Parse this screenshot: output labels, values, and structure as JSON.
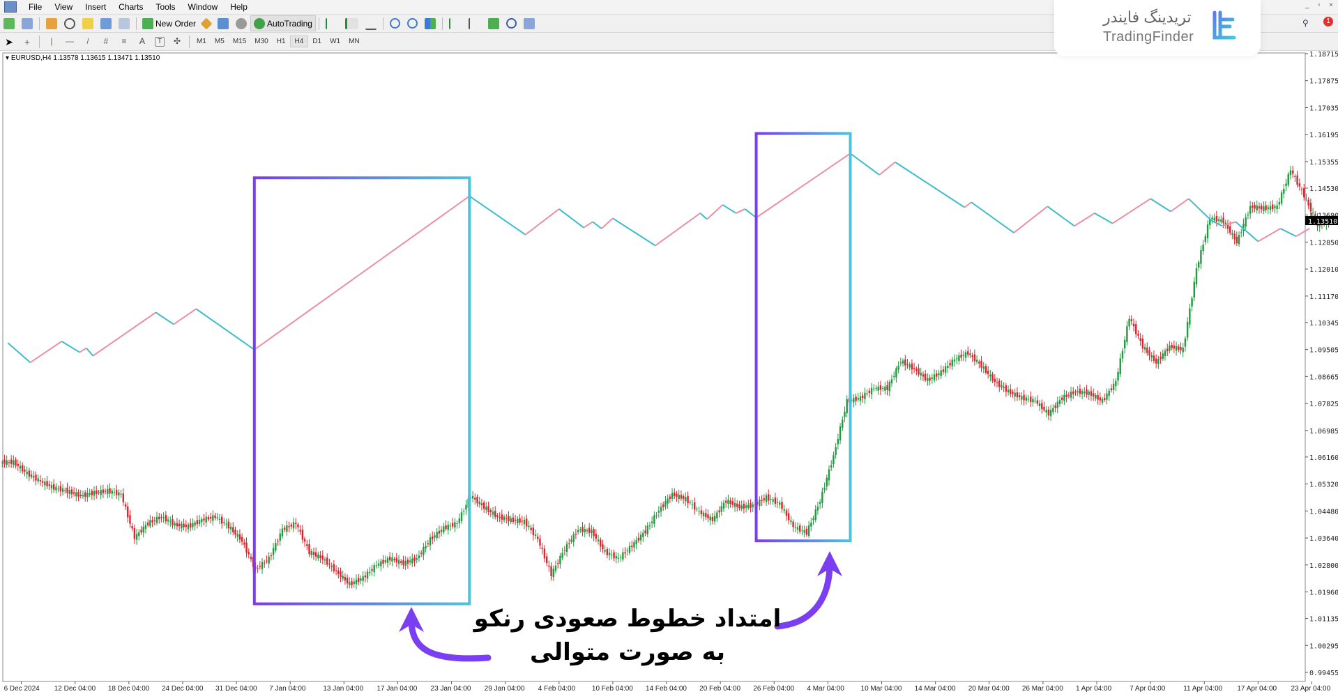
{
  "menu": [
    "File",
    "View",
    "Insert",
    "Charts",
    "Tools",
    "Window",
    "Help"
  ],
  "toolbar": {
    "new_order": "New Order",
    "auto_trading": "AutoTrading"
  },
  "timeframes": [
    "M1",
    "M5",
    "M15",
    "M30",
    "H1",
    "H4",
    "D1",
    "W1",
    "MN"
  ],
  "active_timeframe": "H4",
  "chart_header": "EURUSD,H4  1.13578 1.13615 1.13471 1.13510",
  "logo": {
    "fa": "تریدینگ فایندر",
    "en": "TradingFinder"
  },
  "annotation": {
    "line1": "امتداد خطوط صعودی رنکو",
    "line2": "به صورت متوالی"
  },
  "colors": {
    "bull": "#1f9a3c",
    "bear": "#e0202a",
    "renko_up": "#ec8fa3",
    "renko_down": "#3bbccc",
    "box_start": "#7a3cf0",
    "box_end": "#4cc3dd",
    "arrow": "#7b3ff2"
  },
  "chart_data": {
    "type": "candlestick",
    "symbol": "EURUSD",
    "timeframe": "H4",
    "current_price": "1.13510",
    "ylim": [
      0.99455,
      1.18715
    ],
    "y_ticks": [
      "1.18715",
      "1.17875",
      "1.17035",
      "1.16195",
      "1.15355",
      "1.14530",
      "1.13690",
      "1.12850",
      "1.12010",
      "1.11170",
      "1.10345",
      "1.09505",
      "1.08665",
      "1.07825",
      "1.06985",
      "1.06160",
      "1.05320",
      "1.04480",
      "1.03640",
      "1.02800",
      "1.01960",
      "1.01135",
      "1.00295",
      "0.99455"
    ],
    "x_ticks": [
      "6 Dec 2024",
      "12 Dec 04:00",
      "18 Dec 04:00",
      "24 Dec 04:00",
      "31 Dec 04:00",
      "7 Jan 04:00",
      "13 Jan 04:00",
      "17 Jan 04:00",
      "23 Jan 04:00",
      "29 Jan 04:00",
      "4 Feb 04:00",
      "10 Feb 04:00",
      "14 Feb 04:00",
      "20 Feb 04:00",
      "26 Feb 04:00",
      "4 Mar 04:00",
      "10 Mar 04:00",
      "14 Mar 04:00",
      "20 Mar 04:00",
      "26 Mar 04:00",
      "1 Apr 04:00",
      "7 Apr 04:00",
      "11 Apr 04:00",
      "17 Apr 04:00",
      "23 Apr 04:00"
    ],
    "daily_closes": [
      [
        "2024-12-05",
        1.06
      ],
      [
        "2024-12-06",
        1.0565
      ],
      [
        "2024-12-09",
        1.054
      ],
      [
        "2024-12-10",
        1.052
      ],
      [
        "2024-12-11",
        1.051
      ],
      [
        "2024-12-12",
        1.0495
      ],
      [
        "2024-12-13",
        1.0505
      ],
      [
        "2024-12-16",
        1.051
      ],
      [
        "2024-12-17",
        1.05
      ],
      [
        "2024-12-18",
        1.0365
      ],
      [
        "2024-12-19",
        1.041
      ],
      [
        "2024-12-20",
        1.043
      ],
      [
        "2024-12-23",
        1.0405
      ],
      [
        "2024-12-24",
        1.04
      ],
      [
        "2024-12-26",
        1.042
      ],
      [
        "2024-12-27",
        1.043
      ],
      [
        "2024-12-30",
        1.04
      ],
      [
        "2024-12-31",
        1.0355
      ],
      [
        "2025-01-02",
        1.0265
      ],
      [
        "2025-01-03",
        1.03
      ],
      [
        "2025-01-06",
        1.039
      ],
      [
        "2025-01-07",
        1.041
      ],
      [
        "2025-01-08",
        1.032
      ],
      [
        "2025-01-09",
        1.03
      ],
      [
        "2025-01-10",
        1.026
      ],
      [
        "2025-01-13",
        1.022
      ],
      [
        "2025-01-14",
        1.024
      ],
      [
        "2025-01-15",
        1.028
      ],
      [
        "2025-01-16",
        1.03
      ],
      [
        "2025-01-17",
        1.0285
      ],
      [
        "2025-01-20",
        1.03
      ],
      [
        "2025-01-21",
        1.036
      ],
      [
        "2025-01-22",
        1.0395
      ],
      [
        "2025-01-23",
        1.041
      ],
      [
        "2025-01-24",
        1.0495
      ],
      [
        "2025-01-27",
        1.046
      ],
      [
        "2025-01-28",
        1.043
      ],
      [
        "2025-01-29",
        1.042
      ],
      [
        "2025-01-30",
        1.0415
      ],
      [
        "2025-01-31",
        1.036
      ],
      [
        "2025-02-03",
        1.025
      ],
      [
        "2025-02-04",
        1.033
      ],
      [
        "2025-02-05",
        1.039
      ],
      [
        "2025-02-06",
        1.0385
      ],
      [
        "2025-02-07",
        1.032
      ],
      [
        "2025-02-10",
        1.03
      ],
      [
        "2025-02-11",
        1.034
      ],
      [
        "2025-02-12",
        1.0385
      ],
      [
        "2025-02-13",
        1.045
      ],
      [
        "2025-02-14",
        1.05
      ],
      [
        "2025-02-17",
        1.0485
      ],
      [
        "2025-02-18",
        1.0445
      ],
      [
        "2025-02-19",
        1.042
      ],
      [
        "2025-02-20",
        1.048
      ],
      [
        "2025-02-21",
        1.046
      ],
      [
        "2025-02-24",
        1.0465
      ],
      [
        "2025-02-25",
        1.049
      ],
      [
        "2025-02-26",
        1.047
      ],
      [
        "2025-02-27",
        1.04
      ],
      [
        "2025-02-28",
        1.038
      ],
      [
        "2025-03-03",
        1.048
      ],
      [
        "2025-03-04",
        1.062
      ],
      [
        "2025-03-05",
        1.079
      ],
      [
        "2025-03-06",
        1.08
      ],
      [
        "2025-03-07",
        1.083
      ],
      [
        "2025-03-10",
        1.083
      ],
      [
        "2025-03-11",
        1.0915
      ],
      [
        "2025-03-12",
        1.089
      ],
      [
        "2025-03-13",
        1.0855
      ],
      [
        "2025-03-14",
        1.088
      ],
      [
        "2025-03-17",
        1.092
      ],
      [
        "2025-03-18",
        1.094
      ],
      [
        "2025-03-19",
        1.09
      ],
      [
        "2025-03-20",
        1.085
      ],
      [
        "2025-03-21",
        1.082
      ],
      [
        "2025-03-24",
        1.08
      ],
      [
        "2025-03-25",
        1.079
      ],
      [
        "2025-03-26",
        1.075
      ],
      [
        "2025-03-27",
        1.08
      ],
      [
        "2025-03-28",
        1.082
      ],
      [
        "2025-03-31",
        1.0815
      ],
      [
        "2025-04-01",
        1.079
      ],
      [
        "2025-04-02",
        1.085
      ],
      [
        "2025-04-03",
        1.105
      ],
      [
        "2025-04-04",
        1.096
      ],
      [
        "2025-04-07",
        1.091
      ],
      [
        "2025-04-08",
        1.096
      ],
      [
        "2025-04-09",
        1.095
      ],
      [
        "2025-04-10",
        1.12
      ],
      [
        "2025-04-11",
        1.136
      ],
      [
        "2025-04-14",
        1.135
      ],
      [
        "2025-04-15",
        1.1285
      ],
      [
        "2025-04-16",
        1.1395
      ],
      [
        "2025-04-17",
        1.139
      ],
      [
        "2025-04-18",
        1.1395
      ],
      [
        "2025-04-21",
        1.151
      ],
      [
        "2025-04-22",
        1.143
      ],
      [
        "2025-04-23",
        1.134
      ],
      [
        "2025-04-24",
        1.1351
      ]
    ],
    "renko_line": [
      [
        "2024-12-05 00:00",
        1.0971
      ],
      [
        "2024-12-06 16:00",
        1.091
      ],
      [
        "2024-12-11 00:00",
        1.0976
      ],
      [
        "2024-12-12 08:00",
        1.0942
      ],
      [
        "2024-12-12 20:00",
        1.0955
      ],
      [
        "2024-12-13 08:00",
        1.0931
      ],
      [
        "2024-12-20 00:00",
        1.1066
      ],
      [
        "2024-12-23 08:00",
        1.1029
      ],
      [
        "2024-12-26 00:00",
        1.1077
      ],
      [
        "2025-01-02 08:00",
        1.095
      ],
      [
        "2025-01-24 08:00",
        1.1428
      ],
      [
        "2025-01-30 12:00",
        1.1308
      ],
      [
        "2025-02-04 00:00",
        1.1388
      ],
      [
        "2025-02-05 20:00",
        1.133
      ],
      [
        "2025-02-06 12:00",
        1.1348
      ],
      [
        "2025-02-07 04:00",
        1.1327
      ],
      [
        "2025-02-10 00:00",
        1.1359
      ],
      [
        "2025-02-13 04:00",
        1.1274
      ],
      [
        "2025-02-18 12:00",
        1.1375
      ],
      [
        "2025-02-19 00:00",
        1.1356
      ],
      [
        "2025-02-20 04:00",
        1.1401
      ],
      [
        "2025-02-21 04:00",
        1.1375
      ],
      [
        "2025-02-21 20:00",
        1.1388
      ],
      [
        "2025-02-24 16:00",
        1.1361
      ],
      [
        "2025-03-05 16:00",
        1.1561
      ],
      [
        "2025-03-07 20:00",
        1.1494
      ],
      [
        "2025-03-11 00:00",
        1.1534
      ],
      [
        "2025-03-18 04:00",
        1.1393
      ],
      [
        "2025-03-18 16:00",
        1.1409
      ],
      [
        "2025-03-21 20:00",
        1.1314
      ],
      [
        "2025-03-26 08:00",
        1.1396
      ],
      [
        "2025-03-28 08:00",
        1.1335
      ],
      [
        "2025-03-31 20:00",
        1.1375
      ],
      [
        "2025-04-02 04:00",
        1.1343
      ],
      [
        "2025-04-07 00:00",
        1.142
      ],
      [
        "2025-04-08 12:00",
        1.138
      ],
      [
        "2025-04-09 20:00",
        1.142
      ],
      [
        "2025-04-11 12:00",
        1.1353
      ],
      [
        "2025-04-14 08:00",
        1.1335
      ],
      [
        "2025-04-15 08:00",
        1.1348
      ],
      [
        "2025-04-17 00:00",
        1.1287
      ],
      [
        "2025-04-18 16:00",
        1.1327
      ],
      [
        "2025-04-21 20:00",
        1.1303
      ],
      [
        "2025-04-22 20:00",
        1.1327
      ]
    ],
    "highlight_boxes": [
      {
        "from": "2025-01-02 08:00",
        "to": "2025-01-24 08:00",
        "price_top": 1.1485,
        "price_bottom": 1.0159
      },
      {
        "from": "2025-02-24 16:00",
        "to": "2025-03-05 16:00",
        "price_top": 1.1623,
        "price_bottom": 1.0355
      }
    ]
  }
}
